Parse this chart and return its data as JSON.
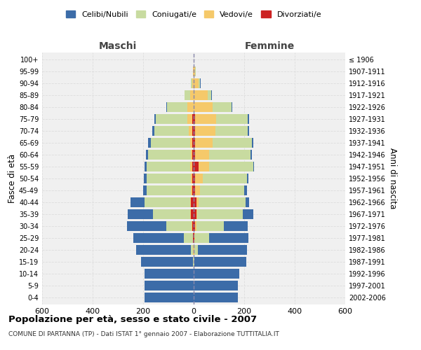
{
  "age_groups": [
    "0-4",
    "5-9",
    "10-14",
    "15-19",
    "20-24",
    "25-29",
    "30-34",
    "35-39",
    "40-44",
    "45-49",
    "50-54",
    "55-59",
    "60-64",
    "65-69",
    "70-74",
    "75-79",
    "80-84",
    "85-89",
    "90-94",
    "95-99",
    "100+"
  ],
  "birth_years": [
    "2002-2006",
    "1997-2001",
    "1992-1996",
    "1987-1991",
    "1982-1986",
    "1977-1981",
    "1972-1976",
    "1967-1971",
    "1962-1966",
    "1957-1961",
    "1952-1956",
    "1947-1951",
    "1942-1946",
    "1937-1941",
    "1932-1936",
    "1927-1931",
    "1922-1926",
    "1917-1921",
    "1912-1916",
    "1907-1911",
    "≤ 1906"
  ],
  "colors": {
    "celibe": "#3c6ca8",
    "coniugato": "#c8dba0",
    "vedovo": "#f5c96a",
    "divorziato": "#cc2222"
  },
  "maschi": {
    "celibe": [
      195,
      195,
      195,
      205,
      215,
      200,
      155,
      100,
      55,
      15,
      12,
      10,
      10,
      10,
      10,
      5,
      3,
      2,
      0,
      0,
      0
    ],
    "coniugato": [
      0,
      0,
      0,
      2,
      10,
      35,
      100,
      145,
      180,
      175,
      175,
      170,
      170,
      155,
      135,
      125,
      80,
      20,
      5,
      2,
      0
    ],
    "vedovo": [
      0,
      0,
      0,
      0,
      2,
      2,
      3,
      5,
      5,
      5,
      5,
      10,
      5,
      10,
      15,
      20,
      25,
      15,
      5,
      2,
      0
    ],
    "divorziato": [
      0,
      0,
      0,
      0,
      0,
      2,
      5,
      10,
      10,
      5,
      5,
      5,
      5,
      5,
      5,
      5,
      0,
      0,
      0,
      0,
      0
    ]
  },
  "femmine": {
    "nubile": [
      175,
      175,
      180,
      205,
      195,
      155,
      95,
      40,
      15,
      10,
      8,
      5,
      5,
      5,
      5,
      5,
      3,
      2,
      2,
      0,
      0
    ],
    "coniugata": [
      0,
      0,
      0,
      3,
      15,
      55,
      110,
      180,
      185,
      175,
      175,
      175,
      165,
      155,
      130,
      125,
      75,
      15,
      5,
      2,
      0
    ],
    "vedova": [
      0,
      0,
      0,
      0,
      2,
      3,
      5,
      5,
      10,
      20,
      30,
      40,
      55,
      70,
      80,
      85,
      75,
      55,
      20,
      5,
      0
    ],
    "divorziata": [
      0,
      0,
      0,
      0,
      0,
      3,
      5,
      10,
      10,
      5,
      5,
      20,
      5,
      5,
      5,
      5,
      0,
      0,
      0,
      0,
      0
    ]
  },
  "xlim": 600,
  "title": "Popolazione per età, sesso e stato civile - 2007",
  "subtitle": "COMUNE DI PARTANNA (TP) - Dati ISTAT 1° gennaio 2007 - Elaborazione TUTTITALIA.IT",
  "xlabel_left": "Maschi",
  "xlabel_right": "Femmine",
  "ylabel": "Fasce di età",
  "ylabel_right": "Anni di nascita",
  "legend_labels": [
    "Celibi/Nubili",
    "Coniugati/e",
    "Vedovi/e",
    "Divorziati/e"
  ],
  "bg_color": "#ffffff",
  "grid_color": "#cccccc"
}
